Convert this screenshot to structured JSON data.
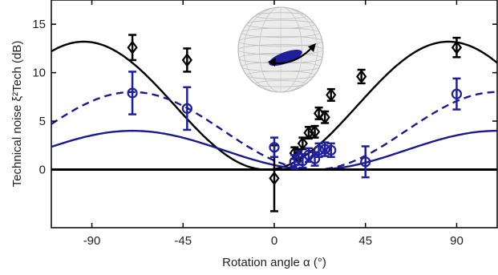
{
  "chart_data": {
    "type": "scatter",
    "title": "",
    "xlabel": "Rotation angle α (°)",
    "ylabel": "Technical noise ξ²Tech (dB)",
    "xlim": [
      -110,
      110
    ],
    "ylim": [
      -6,
      17.5
    ],
    "xticks": [
      -90,
      -45,
      0,
      45,
      90
    ],
    "yticks": [
      0,
      5,
      10,
      15
    ],
    "grid": false,
    "legend": "none",
    "colors": {
      "black": "#000000",
      "blue": "#1a1a8c",
      "blue_marker": "#1f1f99"
    },
    "inset": "Bloch sphere with rotation arrow",
    "series": [
      {
        "marker": "diamond",
        "color": "#000000",
        "points": [
          {
            "x": -70,
            "y": 12.6,
            "err": 1.3
          },
          {
            "x": -43,
            "y": 11.3,
            "err": 1.2
          },
          {
            "x": 0,
            "y": -0.9,
            "err": 3.4
          },
          {
            "x": 10,
            "y": 1.7,
            "err": 0.6
          },
          {
            "x": 12,
            "y": 1.5,
            "err": 0.6
          },
          {
            "x": 14,
            "y": 2.7,
            "err": 0.6
          },
          {
            "x": 17,
            "y": 3.8,
            "err": 0.6
          },
          {
            "x": 20,
            "y": 3.9,
            "err": 0.6
          },
          {
            "x": 22,
            "y": 5.8,
            "err": 0.6
          },
          {
            "x": 25,
            "y": 5.4,
            "err": 0.6
          },
          {
            "x": 28,
            "y": 7.7,
            "err": 0.6
          },
          {
            "x": 43,
            "y": 9.6,
            "err": 0.7
          },
          {
            "x": 90,
            "y": 12.6,
            "err": 1.0
          }
        ]
      },
      {
        "marker": "circle",
        "color": "#1f1f99",
        "points": [
          {
            "x": -70,
            "y": 7.9,
            "err": 2.2
          },
          {
            "x": -43,
            "y": 6.3,
            "err": 2.2
          },
          {
            "x": 0,
            "y": 2.3,
            "err": 1.0
          },
          {
            "x": 10,
            "y": 0.8,
            "err": 0.7
          },
          {
            "x": 12,
            "y": 1.2,
            "err": 0.7
          },
          {
            "x": 14,
            "y": 0.9,
            "err": 0.7
          },
          {
            "x": 17,
            "y": 1.5,
            "err": 0.7
          },
          {
            "x": 20,
            "y": 1.1,
            "err": 0.7
          },
          {
            "x": 22,
            "y": 2.0,
            "err": 0.7
          },
          {
            "x": 25,
            "y": 2.1,
            "err": 0.7
          },
          {
            "x": 28,
            "y": 2.0,
            "err": 0.7
          },
          {
            "x": 45,
            "y": 0.8,
            "err": 1.6
          },
          {
            "x": 90,
            "y": 7.8,
            "err": 1.6
          }
        ]
      }
    ],
    "curves": [
      {
        "style": "solid",
        "color": "#000000",
        "amplitude": 13.2,
        "phase": -94
      },
      {
        "style": "dashed",
        "color": "#1a1a8c",
        "amplitude": 8.0,
        "phase": -70
      },
      {
        "style": "solid",
        "color": "#1a1a8c",
        "amplitude": 4.0,
        "phase": -70
      }
    ],
    "baseline": 0
  }
}
